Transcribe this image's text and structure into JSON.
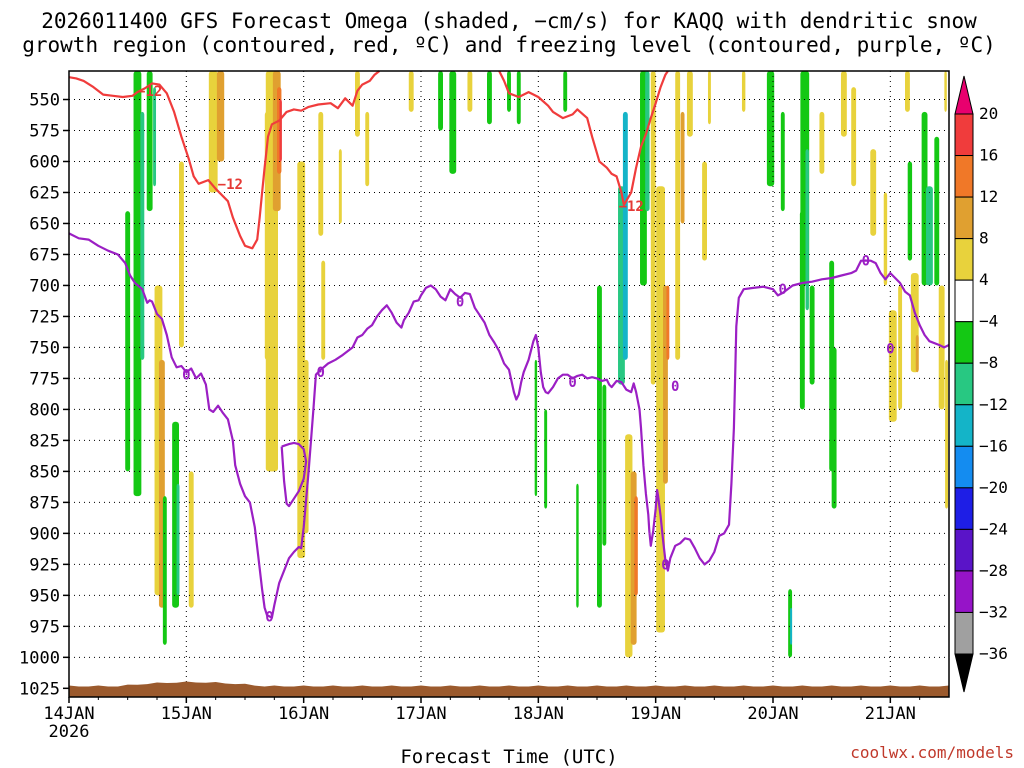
{
  "chart_data": {
    "type": "heatmap",
    "title_line1": "2026011400 GFS Forecast Omega (shaded, −cm/s) for KAQQ with dendritic snow",
    "title_line2": "growth region (contoured, red, ºC) and freezing level (contoured, purple, ºC)",
    "xlabel": "Forecast Time (UTC)",
    "x_ticks": [
      {
        "label": "14JAN",
        "sub": "2026",
        "hours": 0
      },
      {
        "label": "15JAN",
        "sub": "",
        "hours": 24
      },
      {
        "label": "16JAN",
        "sub": "",
        "hours": 48
      },
      {
        "label": "17JAN",
        "sub": "",
        "hours": 72
      },
      {
        "label": "18JAN",
        "sub": "",
        "hours": 96
      },
      {
        "label": "19JAN",
        "sub": "",
        "hours": 120
      },
      {
        "label": "20JAN",
        "sub": "",
        "hours": 144
      },
      {
        "label": "21JAN",
        "sub": "",
        "hours": 168
      }
    ],
    "xlim_hours": [
      0,
      180
    ],
    "y_ticks": [
      550,
      575,
      600,
      625,
      650,
      675,
      700,
      725,
      750,
      775,
      800,
      825,
      850,
      875,
      900,
      925,
      950,
      975,
      1000,
      1025
    ],
    "ylim_hpa": [
      527,
      1032
    ],
    "colorbar_levels": [
      20,
      16,
      12,
      8,
      4,
      -4,
      -8,
      -12,
      -16,
      -20,
      -24,
      -28,
      -32,
      -36
    ],
    "colorbar_colors": [
      "#e8006e",
      "#f03c3c",
      "#f07828",
      "#e0a030",
      "#e8d23c",
      "#ffffff",
      "#14c814",
      "#28c882",
      "#14b4c8",
      "#148cf0",
      "#1e1ee6",
      "#5a14c8",
      "#9614c8",
      "#a0a0a0",
      "#000000"
    ],
    "shading_colors": {
      "up_weak": "#14c814",
      "up_mod": "#28c882",
      "up_strong": "#14b4c8",
      "down_weak": "#e8d23c",
      "down_mod": "#e0a030",
      "down_strong": "#f07828",
      "down_extreme": "#f03c3c"
    },
    "ground_color": "#9b5a2d",
    "red_contour_label": "−12",
    "red_contour_color": "#f03c3c",
    "red_contour": [
      [
        0,
        532
      ],
      [
        1.5,
        533
      ],
      [
        3,
        535
      ],
      [
        5,
        540
      ],
      [
        7,
        546
      ],
      [
        9,
        547
      ],
      [
        11,
        548
      ],
      [
        13,
        547
      ],
      [
        14,
        544
      ],
      [
        15.5,
        541
      ],
      [
        17,
        537
      ],
      [
        18.5,
        538
      ],
      [
        20,
        545
      ],
      [
        21.5,
        560
      ],
      [
        23,
        580
      ],
      [
        24.5,
        598
      ],
      [
        25.5,
        612
      ],
      [
        26.5,
        618
      ],
      [
        28.5,
        615
      ],
      [
        30,
        622
      ],
      [
        32.5,
        632
      ],
      [
        33.5,
        645
      ],
      [
        35,
        660
      ],
      [
        36,
        668
      ],
      [
        37.5,
        670
      ],
      [
        38.5,
        663
      ],
      [
        39,
        645
      ],
      [
        39.5,
        625
      ],
      [
        40,
        605
      ],
      [
        40.3,
        595
      ],
      [
        40.7,
        580
      ],
      [
        41.5,
        570
      ],
      [
        43,
        567
      ],
      [
        44.5,
        560
      ],
      [
        46,
        558
      ],
      [
        47.5,
        559
      ],
      [
        49,
        556
      ],
      [
        51,
        554
      ],
      [
        53.5,
        553
      ],
      [
        55,
        557
      ],
      [
        56.5,
        549
      ],
      [
        58,
        555
      ],
      [
        59,
        543
      ],
      [
        60,
        538
      ],
      [
        61.5,
        535
      ],
      [
        62.5,
        530
      ],
      [
        63.5,
        527
      ]
    ],
    "red_contour_2": [
      [
        88,
        527
      ],
      [
        89,
        535
      ],
      [
        90,
        545
      ],
      [
        92,
        548
      ],
      [
        94,
        544
      ],
      [
        96,
        548
      ],
      [
        98,
        555
      ],
      [
        99,
        560
      ],
      [
        101,
        565
      ],
      [
        103,
        562
      ],
      [
        104,
        558
      ],
      [
        106,
        565
      ],
      [
        107,
        580
      ],
      [
        108.5,
        600
      ],
      [
        110,
        605
      ],
      [
        111,
        610
      ],
      [
        112,
        612
      ],
      [
        113,
        625
      ],
      [
        113.5,
        635
      ],
      [
        115,
        625
      ],
      [
        116,
        605
      ],
      [
        117,
        588
      ],
      [
        118,
        578
      ],
      [
        119,
        565
      ],
      [
        120,
        553
      ],
      [
        121,
        540
      ],
      [
        122,
        530
      ],
      [
        122.5,
        527
      ]
    ],
    "purple_contour_label": "0",
    "purple_contour_color": "#9b1fc4",
    "purple_contour": [
      [
        0,
        658
      ],
      [
        2,
        662
      ],
      [
        4,
        663
      ],
      [
        6,
        668
      ],
      [
        8,
        672
      ],
      [
        10,
        675
      ],
      [
        11.5,
        682
      ],
      [
        12.5,
        692
      ],
      [
        13.5,
        698
      ],
      [
        15,
        703
      ],
      [
        16,
        714
      ],
      [
        16.5,
        712
      ],
      [
        17,
        713
      ],
      [
        18,
        723
      ],
      [
        19,
        727
      ],
      [
        20,
        740
      ],
      [
        21,
        758
      ],
      [
        22,
        766
      ],
      [
        23,
        765
      ],
      [
        24,
        770
      ],
      [
        25,
        767
      ],
      [
        26,
        775
      ],
      [
        27,
        771
      ],
      [
        28,
        780
      ],
      [
        28.7,
        800
      ],
      [
        29.5,
        802
      ],
      [
        30.5,
        797
      ],
      [
        31.5,
        803
      ],
      [
        32.5,
        808
      ],
      [
        33.5,
        825
      ],
      [
        34,
        845
      ],
      [
        35,
        860
      ],
      [
        36,
        870
      ],
      [
        37,
        875
      ],
      [
        38,
        895
      ],
      [
        38.7,
        918
      ],
      [
        39.5,
        945
      ],
      [
        40,
        960
      ],
      [
        40.5,
        966
      ],
      [
        41.5,
        968
      ],
      [
        42,
        958
      ],
      [
        43,
        940
      ],
      [
        44,
        930
      ],
      [
        45,
        920
      ],
      [
        46,
        915
      ],
      [
        47,
        911
      ],
      [
        47.5,
        912
      ],
      [
        48,
        895
      ],
      [
        49,
        850
      ],
      [
        50,
        800
      ],
      [
        50.5,
        772
      ],
      [
        51.5,
        768
      ],
      [
        53,
        763
      ],
      [
        54.5,
        760
      ],
      [
        56,
        756
      ],
      [
        58,
        750
      ],
      [
        59,
        742
      ],
      [
        60,
        740
      ],
      [
        61,
        735
      ],
      [
        62,
        732
      ],
      [
        63,
        725
      ],
      [
        64,
        720
      ],
      [
        65,
        716
      ],
      [
        66,
        722
      ],
      [
        67,
        730
      ],
      [
        68,
        734
      ],
      [
        68.5,
        728
      ],
      [
        69.5,
        722
      ],
      [
        70.5,
        713
      ],
      [
        71.5,
        712
      ],
      [
        72,
        708
      ],
      [
        73,
        702
      ],
      [
        74,
        700
      ],
      [
        75,
        703
      ],
      [
        76,
        709
      ],
      [
        77,
        712
      ],
      [
        78,
        703
      ],
      [
        79,
        707
      ],
      [
        80,
        710
      ],
      [
        81,
        706
      ],
      [
        82,
        707
      ],
      [
        83,
        718
      ],
      [
        84,
        724
      ],
      [
        85,
        730
      ],
      [
        86,
        740
      ],
      [
        87,
        746
      ],
      [
        88,
        753
      ],
      [
        89,
        763
      ],
      [
        90,
        768
      ],
      [
        91,
        786
      ],
      [
        91.5,
        792
      ],
      [
        92,
        788
      ],
      [
        92.5,
        778
      ],
      [
        93,
        770
      ],
      [
        94,
        760
      ],
      [
        95,
        745
      ],
      [
        95.5,
        740
      ],
      [
        96,
        750
      ],
      [
        96.5,
        770
      ],
      [
        97,
        782
      ],
      [
        97.5,
        786
      ],
      [
        98,
        787
      ],
      [
        99,
        782
      ],
      [
        100,
        775
      ],
      [
        101,
        772
      ],
      [
        102,
        772
      ],
      [
        103,
        775
      ],
      [
        104,
        773
      ],
      [
        105,
        772
      ],
      [
        106,
        775
      ],
      [
        107,
        774
      ],
      [
        108,
        775
      ],
      [
        109,
        777
      ],
      [
        110,
        776
      ],
      [
        110.5,
        780
      ],
      [
        111,
        782
      ],
      [
        112,
        777
      ],
      [
        113,
        778
      ],
      [
        114,
        784
      ],
      [
        115,
        786
      ],
      [
        115.5,
        779
      ],
      [
        116,
        786
      ],
      [
        116.7,
        800
      ],
      [
        117,
        815
      ],
      [
        117.5,
        845
      ],
      [
        118,
        868
      ],
      [
        118.5,
        885
      ],
      [
        118.7,
        898
      ],
      [
        119,
        910
      ],
      [
        119.5,
        898
      ],
      [
        120,
        880
      ],
      [
        120.3,
        865
      ],
      [
        120.5,
        870
      ],
      [
        121,
        886
      ],
      [
        121.5,
        905
      ],
      [
        122,
        922
      ],
      [
        122.5,
        930
      ],
      [
        123,
        920
      ],
      [
        124,
        910
      ],
      [
        125,
        908
      ],
      [
        126,
        904
      ],
      [
        127,
        905
      ],
      [
        128,
        912
      ],
      [
        129,
        920
      ],
      [
        130,
        925
      ],
      [
        131,
        922
      ],
      [
        132,
        915
      ],
      [
        133,
        902
      ],
      [
        134,
        900
      ],
      [
        135,
        893
      ],
      [
        135.5,
        860
      ],
      [
        136,
        815
      ],
      [
        136.3,
        765
      ],
      [
        136.5,
        733
      ],
      [
        137,
        710
      ],
      [
        138,
        703
      ],
      [
        140,
        702
      ],
      [
        142,
        701
      ],
      [
        144,
        703
      ],
      [
        145,
        708
      ],
      [
        146,
        706
      ],
      [
        148,
        700
      ],
      [
        150,
        698
      ],
      [
        152,
        697
      ],
      [
        154,
        695
      ],
      [
        156,
        694
      ],
      [
        158,
        692
      ],
      [
        160,
        690
      ],
      [
        161,
        688
      ],
      [
        162,
        680
      ],
      [
        164,
        680
      ],
      [
        165,
        682
      ],
      [
        166,
        690
      ],
      [
        167,
        695
      ],
      [
        168,
        690
      ],
      [
        170,
        698
      ],
      [
        171,
        705
      ],
      [
        172,
        708
      ],
      [
        173,
        722
      ],
      [
        174,
        732
      ],
      [
        175,
        740
      ],
      [
        176,
        745
      ],
      [
        178,
        748
      ],
      [
        179,
        750
      ],
      [
        180,
        748
      ]
    ],
    "purple_contour_2": [
      [
        43.5,
        830
      ],
      [
        44,
        858
      ],
      [
        44.5,
        876
      ],
      [
        45,
        878
      ],
      [
        46,
        872
      ],
      [
        47,
        866
      ],
      [
        48,
        856
      ],
      [
        48.5,
        842
      ],
      [
        48,
        832
      ],
      [
        47,
        828
      ],
      [
        46,
        827
      ],
      [
        45,
        828
      ],
      [
        43.5,
        830
      ]
    ],
    "credit": "coolwx.com/models"
  }
}
